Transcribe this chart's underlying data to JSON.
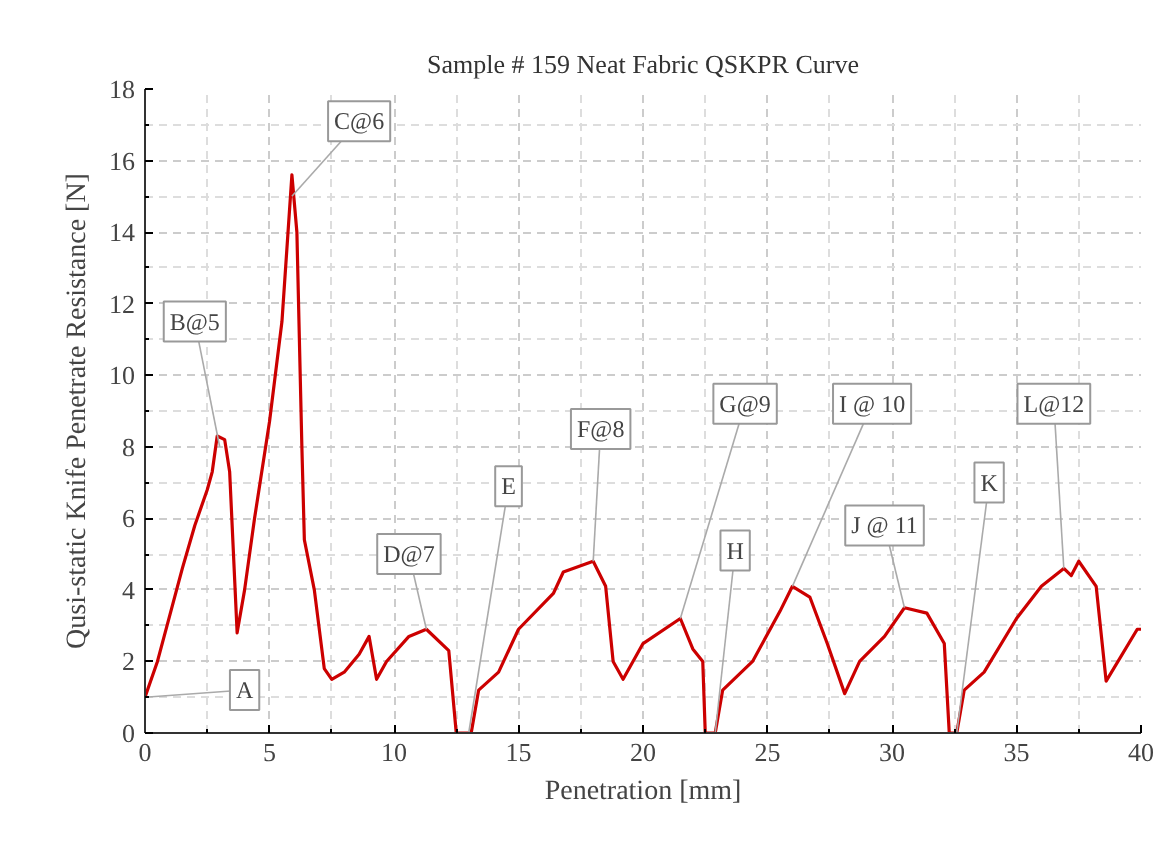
{
  "chart_data": {
    "type": "line",
    "title": "Sample # 159 Neat Fabric QSKPR Curve",
    "xlabel": "Penetration [mm]",
    "ylabel": "Qusi-static Knife Penetrate Resistance [N]",
    "xlim": [
      0,
      40
    ],
    "ylim": [
      0,
      18
    ],
    "xticks": [
      0,
      5,
      10,
      15,
      20,
      25,
      30,
      35,
      40
    ],
    "yticks": [
      0,
      2,
      4,
      6,
      8,
      10,
      12,
      14,
      16,
      18
    ],
    "grid": true,
    "line_style": "solid",
    "marker": "none",
    "series": [
      {
        "color": "#cc0000",
        "x": [
          0,
          0.5,
          1,
          1.5,
          2,
          2.5,
          2.7,
          2.9,
          3.2,
          3.4,
          3.7,
          4.0,
          4.4,
          5.0,
          5.5,
          5.9,
          6.1,
          6.3,
          6.4,
          6.8,
          7.2,
          7.5,
          8.0,
          8.6,
          9.0,
          9.3,
          9.7,
          10.6,
          11.3,
          12.2,
          12.5,
          13.1,
          13.4,
          14.2,
          15.0,
          16.4,
          16.8,
          18.0,
          18.5,
          18.8,
          19.2,
          20.0,
          21.5,
          22.0,
          22.4,
          22.5,
          22.9,
          23.2,
          24.4,
          25.5,
          26.0,
          26.7,
          27.4,
          28.1,
          28.7,
          29.7,
          30.5,
          31.4,
          32.1,
          32.3,
          32.6,
          32.9,
          33.7,
          35.0,
          36.0,
          36.9,
          37.2,
          37.5,
          38.2,
          38.6,
          39.85,
          40
        ],
        "values": [
          1.0,
          2.0,
          3.3,
          4.6,
          5.8,
          6.8,
          7.3,
          8.3,
          8.2,
          7.3,
          2.8,
          4.0,
          6.0,
          8.7,
          11.5,
          15.6,
          14.0,
          8.0,
          5.4,
          4.0,
          1.8,
          1.5,
          1.7,
          2.2,
          2.7,
          1.5,
          2.0,
          2.7,
          2.9,
          2.3,
          0,
          0,
          1.2,
          1.7,
          2.9,
          3.9,
          4.5,
          4.8,
          4.1,
          2.0,
          1.5,
          2.5,
          3.2,
          2.35,
          2.0,
          0,
          0,
          1.2,
          2.0,
          3.4,
          4.1,
          3.8,
          2.5,
          1.1,
          2.0,
          2.7,
          3.5,
          3.35,
          2.5,
          0,
          0,
          1.2,
          1.7,
          3.2,
          4.1,
          4.6,
          4.4,
          4.8,
          4.1,
          1.45,
          2.9,
          2.9
        ]
      }
    ],
    "annotations": [
      {
        "text": "A",
        "x": 0,
        "y": 1.0
      },
      {
        "text": "B@5",
        "x": 3.0,
        "y": 8.0
      },
      {
        "text": "C@6",
        "x": 5.9,
        "y": 15.0
      },
      {
        "text": "D@7",
        "x": 11.3,
        "y": 2.9
      },
      {
        "text": "E",
        "x": 13.0,
        "y": 0
      },
      {
        "text": "F@8",
        "x": 18.0,
        "y": 4.8
      },
      {
        "text": "G@9",
        "x": 21.5,
        "y": 3.2
      },
      {
        "text": "H",
        "x": 22.9,
        "y": 0
      },
      {
        "text": "I @ 10",
        "x": 26.0,
        "y": 4.1
      },
      {
        "text": "J @ 11",
        "x": 30.5,
        "y": 3.5
      },
      {
        "text": "K",
        "x": 32.6,
        "y": 0
      },
      {
        "text": "L@12",
        "x": 36.9,
        "y": 4.6
      }
    ]
  }
}
